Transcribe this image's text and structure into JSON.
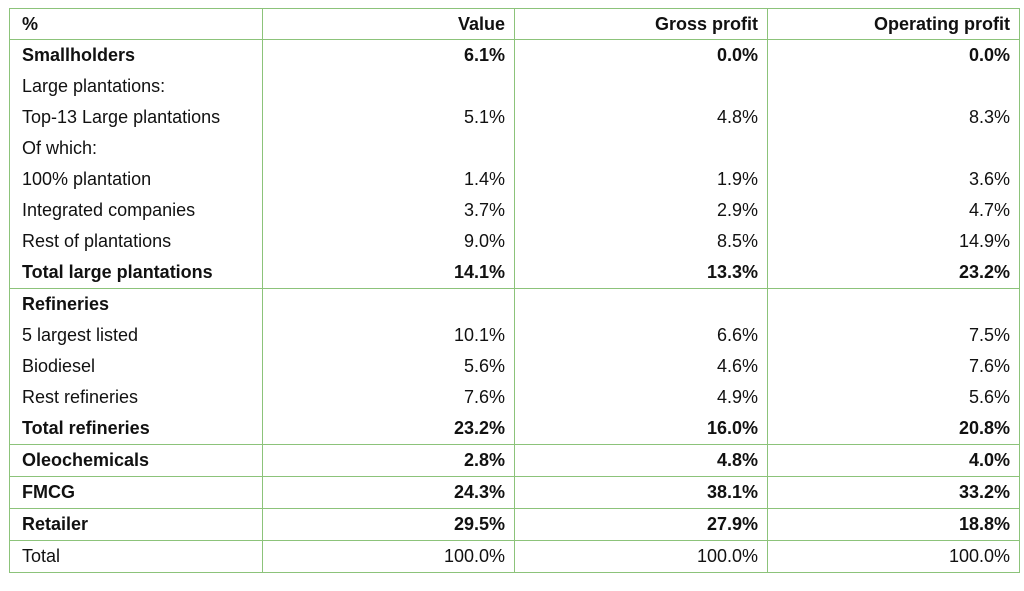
{
  "table": {
    "headers": [
      "%",
      "Value",
      "Gross profit",
      "Operating profit"
    ],
    "groups": [
      {
        "rows": [
          {
            "label": "Smallholders",
            "value": "6.1%",
            "gross": "0.0%",
            "operating": "0.0%",
            "bold": true
          },
          {
            "label": "Large plantations:",
            "value": "",
            "gross": "",
            "operating": "",
            "bold": false
          },
          {
            "label": "Top-13 Large plantations",
            "value": "5.1%",
            "gross": "4.8%",
            "operating": "8.3%",
            "bold": false
          },
          {
            "label": "Of which:",
            "value": "",
            "gross": "",
            "operating": "",
            "bold": false
          },
          {
            "label": "100% plantation",
            "value": "1.4%",
            "gross": "1.9%",
            "operating": "3.6%",
            "bold": false
          },
          {
            "label": "Integrated companies",
            "value": "3.7%",
            "gross": "2.9%",
            "operating": "4.7%",
            "bold": false
          },
          {
            "label": "Rest of plantations",
            "value": "9.0%",
            "gross": "8.5%",
            "operating": "14.9%",
            "bold": false
          },
          {
            "label": "Total large plantations",
            "value": "14.1%",
            "gross": "13.3%",
            "operating": "23.2%",
            "bold": true
          }
        ]
      },
      {
        "rows": [
          {
            "label": "Refineries",
            "value": "",
            "gross": "",
            "operating": "",
            "bold": true
          },
          {
            "label": "5 largest listed",
            "value": "10.1%",
            "gross": "6.6%",
            "operating": "7.5%",
            "bold": false
          },
          {
            "label": "Biodiesel",
            "value": "5.6%",
            "gross": "4.6%",
            "operating": "7.6%",
            "bold": false
          },
          {
            "label": "Rest refineries",
            "value": "7.6%",
            "gross": "4.9%",
            "operating": "5.6%",
            "bold": false
          },
          {
            "label": "Total refineries",
            "value": "23.2%",
            "gross": "16.0%",
            "operating": "20.8%",
            "bold": true
          }
        ]
      },
      {
        "rows": [
          {
            "label": "Oleochemicals",
            "value": "2.8%",
            "gross": "4.8%",
            "operating": "4.0%",
            "bold": true
          }
        ]
      },
      {
        "rows": [
          {
            "label": "FMCG",
            "value": "24.3%",
            "gross": "38.1%",
            "operating": "33.2%",
            "bold": true
          }
        ]
      },
      {
        "rows": [
          {
            "label": "Retailer",
            "value": "29.5%",
            "gross": "27.9%",
            "operating": "18.8%",
            "bold": true
          }
        ]
      },
      {
        "rows": [
          {
            "label": "Total",
            "value": "100.0%",
            "gross": "100.0%",
            "operating": "100.0%",
            "bold": false
          }
        ]
      }
    ]
  },
  "colors": {
    "border": "#8cc37a",
    "text": "#111111",
    "background": "#ffffff"
  }
}
